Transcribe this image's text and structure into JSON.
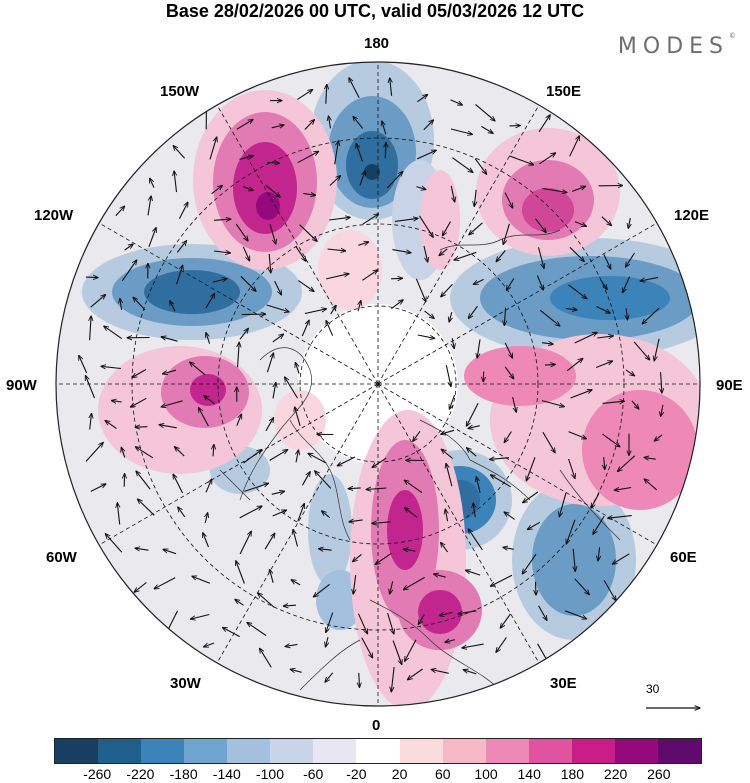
{
  "header": {
    "title": "Base 28/02/2026 00 UTC, valid 05/03/2026 12 UTC",
    "logo": "MODES",
    "logo_mark": "©"
  },
  "map": {
    "projection": "north-polar-stereographic",
    "longitude_labels": {
      "n180": "180",
      "w150": "150W",
      "e150": "150E",
      "w120": "120W",
      "e120": "120E",
      "w90": "90W",
      "e90": "90E",
      "w60": "60W",
      "e60": "60E",
      "w30": "30W",
      "e30": "30E",
      "zero": "0"
    },
    "reference_vector": "30",
    "colors": {
      "blue_strong": "#2f6e9f",
      "blue_mid": "#6a9cc6",
      "blue_light": "#b7cbe0",
      "pink_strong": "#c2268e",
      "pink_mid": "#e27ab4",
      "pink_light": "#f4c6d7",
      "neutral": "#ececec"
    }
  },
  "colorbar": {
    "colors": [
      "#163f62",
      "#1f5f8e",
      "#3b83b8",
      "#6ea4cf",
      "#a3c0de",
      "#cad4e8",
      "#e7e6f1",
      "#ffffff",
      "#fbdcde",
      "#f7b8c8",
      "#ee88b6",
      "#e1539f",
      "#c91e8a",
      "#95097c",
      "#600a6e"
    ],
    "ticks": [
      "-260",
      "-220",
      "-180",
      "-140",
      "-100",
      "-60",
      "-20",
      "20",
      "60",
      "100",
      "140",
      "180",
      "220",
      "260"
    ]
  }
}
